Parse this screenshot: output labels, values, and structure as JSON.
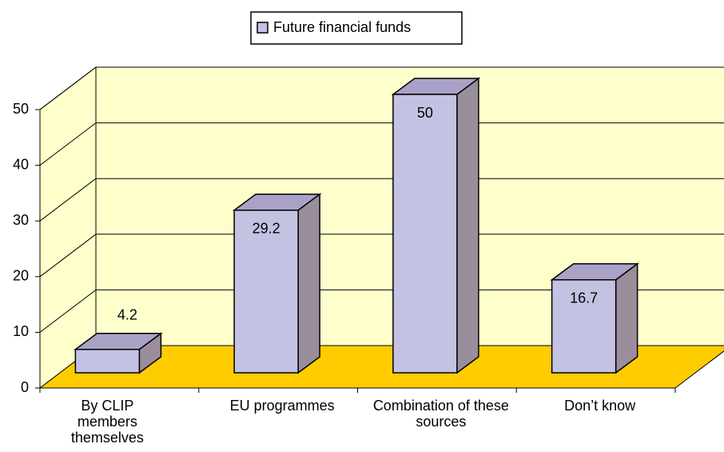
{
  "chart_data": {
    "type": "bar3d",
    "categories": [
      "By CLIP members themselves",
      "EU programmes",
      "Combination of these sources",
      "Don’t know"
    ],
    "series": [
      {
        "name": "Future financial funds",
        "color": "#c4c2e2",
        "values": [
          4.2,
          29.2,
          50,
          16.7
        ]
      }
    ],
    "ylim": [
      0,
      50
    ],
    "yticks": [
      0,
      10,
      20,
      30,
      40,
      50
    ],
    "grid": true,
    "legend": "top"
  }
}
